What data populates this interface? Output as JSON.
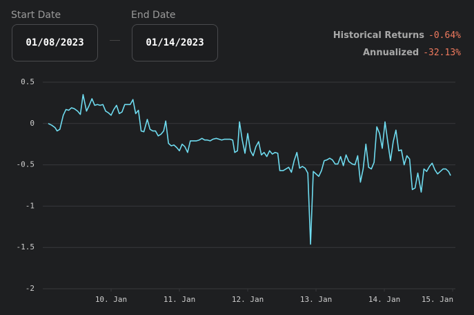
{
  "header": {
    "start_label": "Start Date",
    "start_value": "01/08/2023",
    "end_label": "End Date",
    "end_value": "01/14/2023",
    "stats": [
      {
        "label": "Historical Returns",
        "value": "-0.64%"
      },
      {
        "label": "Annualized",
        "value": "-32.13%"
      }
    ]
  },
  "chart_data": {
    "type": "line",
    "x": [
      9.08,
      9.13,
      9.18,
      9.21,
      9.25,
      9.3,
      9.34,
      9.38,
      9.42,
      9.46,
      9.51,
      9.55,
      9.59,
      9.64,
      9.68,
      9.72,
      9.76,
      9.8,
      9.84,
      9.88,
      9.92,
      9.96,
      10.0,
      10.04,
      10.08,
      10.12,
      10.16,
      10.2,
      10.24,
      10.28,
      10.32,
      10.36,
      10.4,
      10.44,
      10.48,
      10.53,
      10.57,
      10.61,
      10.65,
      10.69,
      10.73,
      10.77,
      10.8,
      10.84,
      10.88,
      10.92,
      10.96,
      11.0,
      11.04,
      11.08,
      11.12,
      11.16,
      11.21,
      11.25,
      11.29,
      11.33,
      11.37,
      11.41,
      11.45,
      11.49,
      11.54,
      11.58,
      11.62,
      11.66,
      11.7,
      11.74,
      11.78,
      11.81,
      11.85,
      11.88,
      11.92,
      11.96,
      12.0,
      12.04,
      12.08,
      12.12,
      12.16,
      12.2,
      12.24,
      12.28,
      12.32,
      12.36,
      12.4,
      12.44,
      12.47,
      12.52,
      12.56,
      12.6,
      12.64,
      12.68,
      12.72,
      12.76,
      12.8,
      12.84,
      12.88,
      12.92,
      12.96,
      13.0,
      13.04,
      13.08,
      13.12,
      13.16,
      13.2,
      13.24,
      13.28,
      13.32,
      13.36,
      13.4,
      13.44,
      13.48,
      13.53,
      13.57,
      13.61,
      13.65,
      13.69,
      13.73,
      13.77,
      13.81,
      13.85,
      13.89,
      13.93,
      13.97,
      14.01,
      14.05,
      14.09,
      14.13,
      14.17,
      14.21,
      14.25,
      14.29,
      14.33,
      14.37,
      14.41,
      14.45,
      14.49,
      14.54,
      14.58,
      14.62,
      14.66,
      14.7,
      14.74,
      14.78,
      14.82,
      14.86,
      14.9,
      14.94,
      14.97
    ],
    "series": [
      {
        "color": "#6fdcf0",
        "values": [
          0,
          -0.02,
          -0.05,
          -0.09,
          -0.07,
          0.1,
          0.17,
          0.16,
          0.19,
          0.18,
          0.15,
          0.11,
          0.35,
          0.15,
          0.22,
          0.3,
          0.22,
          0.23,
          0.22,
          0.23,
          0.15,
          0.13,
          0.1,
          0.17,
          0.22,
          0.12,
          0.14,
          0.23,
          0.23,
          0.23,
          0.29,
          0.12,
          0.16,
          -0.09,
          -0.1,
          0.05,
          -0.07,
          -0.09,
          -0.09,
          -0.15,
          -0.13,
          -0.09,
          0.03,
          -0.24,
          -0.27,
          -0.26,
          -0.29,
          -0.33,
          -0.25,
          -0.28,
          -0.35,
          -0.21,
          -0.21,
          -0.21,
          -0.2,
          -0.18,
          -0.2,
          -0.2,
          -0.21,
          -0.19,
          -0.18,
          -0.19,
          -0.2,
          -0.19,
          -0.19,
          -0.19,
          -0.2,
          -0.35,
          -0.33,
          0.02,
          -0.2,
          -0.36,
          -0.12,
          -0.33,
          -0.39,
          -0.28,
          -0.22,
          -0.38,
          -0.35,
          -0.4,
          -0.33,
          -0.37,
          -0.35,
          -0.36,
          -0.57,
          -0.57,
          -0.55,
          -0.53,
          -0.59,
          -0.45,
          -0.35,
          -0.54,
          -0.52,
          -0.54,
          -0.6,
          -1.46,
          -0.58,
          -0.61,
          -0.64,
          -0.57,
          -0.45,
          -0.44,
          -0.42,
          -0.44,
          -0.49,
          -0.49,
          -0.4,
          -0.51,
          -0.38,
          -0.46,
          -0.49,
          -0.5,
          -0.39,
          -0.71,
          -0.55,
          -0.25,
          -0.53,
          -0.55,
          -0.47,
          -0.04,
          -0.12,
          -0.3,
          0.02,
          -0.22,
          -0.45,
          -0.22,
          -0.08,
          -0.33,
          -0.32,
          -0.5,
          -0.39,
          -0.43,
          -0.8,
          -0.78,
          -0.6,
          -0.83,
          -0.55,
          -0.58,
          -0.52,
          -0.48,
          -0.56,
          -0.61,
          -0.58,
          -0.55,
          -0.55,
          -0.58,
          -0.63
        ]
      }
    ],
    "xlim": [
      9,
      15.04
    ],
    "xticks": [
      {
        "value": 10,
        "label": "10. Jan"
      },
      {
        "value": 11,
        "label": "11. Jan"
      },
      {
        "value": 12,
        "label": "12. Jan"
      },
      {
        "value": 13,
        "label": "13. Jan"
      },
      {
        "value": 14,
        "label": "14. Jan"
      },
      {
        "value": 15,
        "label": "15. Jan"
      }
    ],
    "ylim": [
      -2,
      0.5
    ],
    "yticks": [
      -2,
      -1.5,
      -1,
      -0.5,
      0,
      0.5
    ],
    "grid": true
  }
}
